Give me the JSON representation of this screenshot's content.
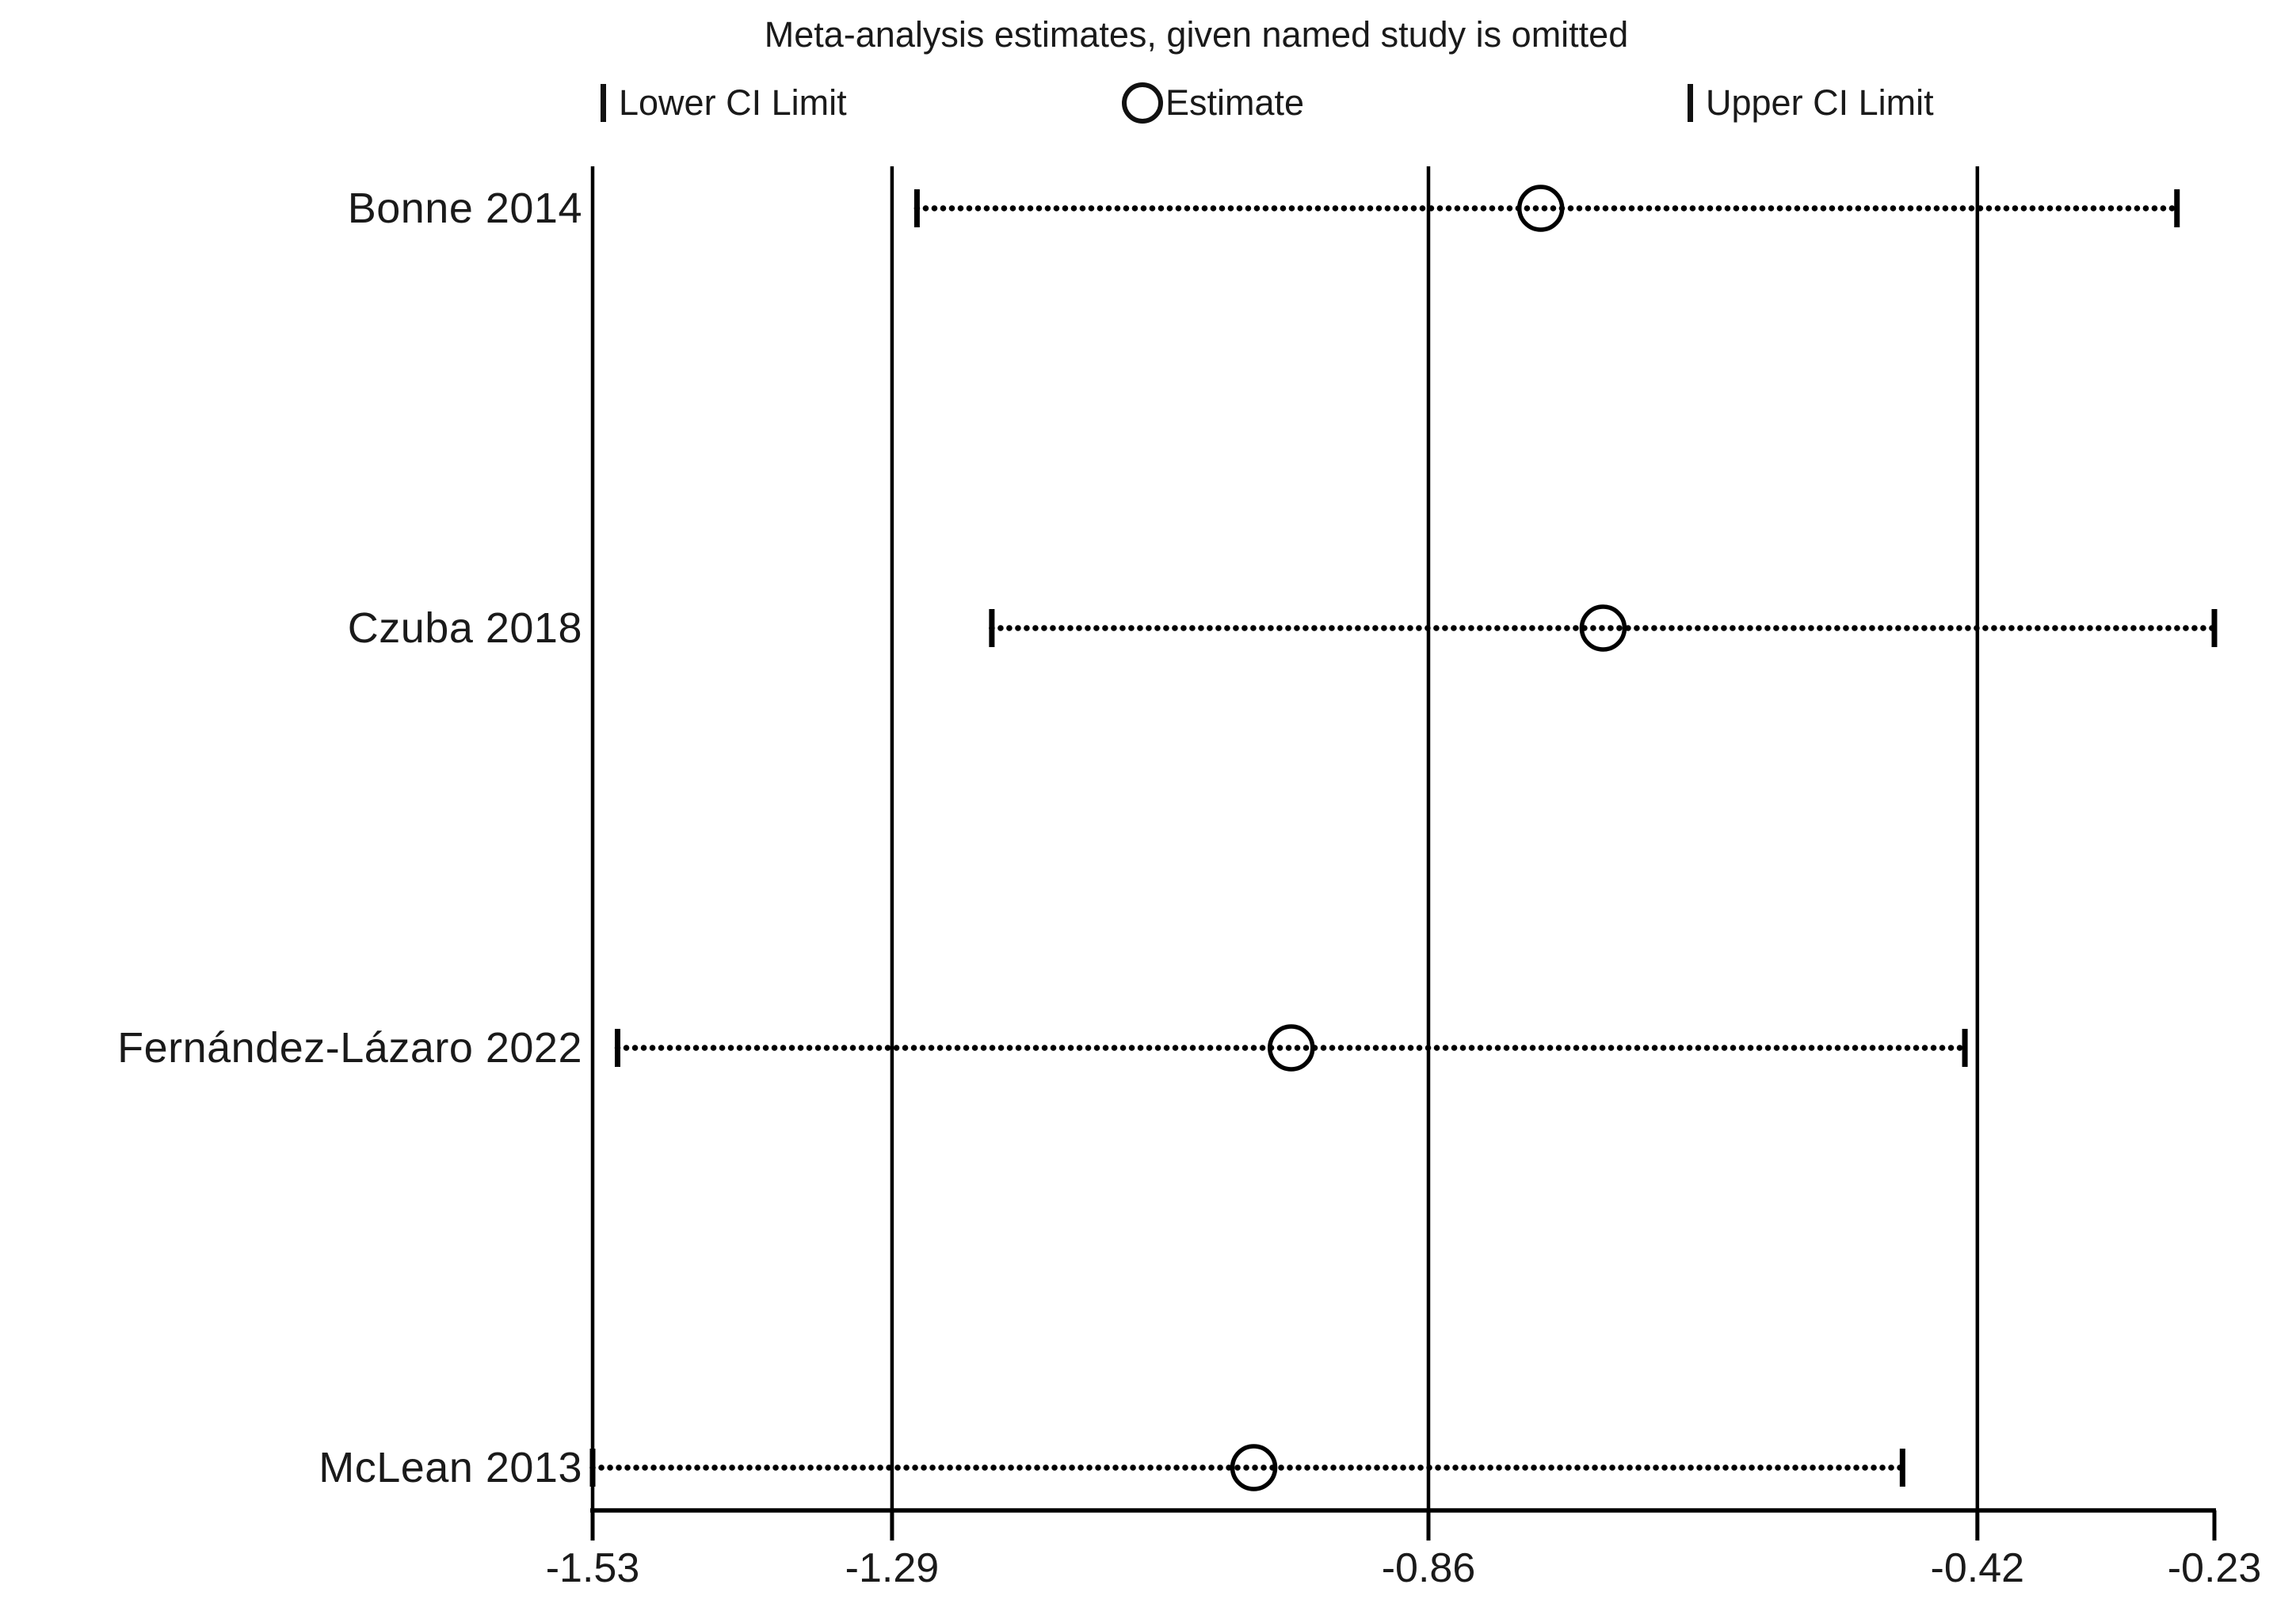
{
  "figure": {
    "title": "Meta-analysis estimates, given named study is omitted",
    "background_color": "#ffffff",
    "ink_color": "#000000"
  },
  "legend": {
    "lower": {
      "icon": "ci-cap-icon",
      "label": "Lower CI Limit"
    },
    "estimate": {
      "icon": "open-circle-icon",
      "label": "Estimate"
    },
    "upper": {
      "icon": "ci-cap-icon",
      "label": "Upper CI Limit"
    }
  },
  "chart_data": {
    "type": "scatter",
    "subtype": "leave-one-out-sensitivity-forest-plot",
    "title": "Meta-analysis estimates, given named study is omitted",
    "legend_position": "top",
    "marker_style": "open-circle",
    "ci_style": "dotted-line-with-end-caps",
    "grid": "vertical-reference-lines",
    "xlim": [
      -1.53,
      -0.23
    ],
    "x_ticks": [
      -1.53,
      -1.29,
      -0.86,
      -0.42,
      -0.23
    ],
    "x_tick_labels": [
      "-1.53",
      "-1.29",
      "-0.86",
      "-0.42",
      "-0.23"
    ],
    "reference_lines": [
      -1.53,
      -1.29,
      -0.86,
      -0.42
    ],
    "overall": {
      "estimate": -0.86,
      "ci_lower": -1.29,
      "ci_upper": -0.42
    },
    "studies": [
      {
        "label": "Bonne 2014",
        "lower": -1.27,
        "estimate": -0.77,
        "upper": -0.26
      },
      {
        "label": "Czuba 2018",
        "lower": -1.21,
        "estimate": -0.72,
        "upper": -0.23
      },
      {
        "label": "Fernández-Lázaro 2022",
        "lower": -1.51,
        "estimate": -0.97,
        "upper": -0.43
      },
      {
        "label": "McLean 2013",
        "lower": -1.53,
        "estimate": -1.0,
        "upper": -0.48
      }
    ]
  }
}
